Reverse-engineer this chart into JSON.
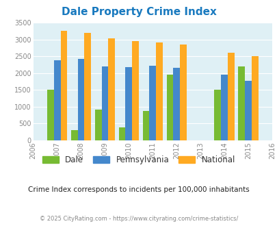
{
  "title": "Dale Property Crime Index",
  "years": [
    2006,
    2007,
    2008,
    2009,
    2010,
    2011,
    2012,
    2013,
    2014,
    2015,
    2016
  ],
  "dale": [
    null,
    1500,
    300,
    900,
    375,
    875,
    1950,
    null,
    1500,
    2200,
    null
  ],
  "pennsylvania": [
    null,
    2375,
    2425,
    2200,
    2175,
    2225,
    2150,
    null,
    1950,
    1775,
    null
  ],
  "national": [
    null,
    3250,
    3200,
    3025,
    2950,
    2900,
    2850,
    null,
    2600,
    2500,
    null
  ],
  "dale_color": "#77bb33",
  "pa_color": "#4488cc",
  "nat_color": "#ffaa22",
  "bg_color": "#dff0f5",
  "ylim": [
    0,
    3500
  ],
  "yticks": [
    0,
    500,
    1000,
    1500,
    2000,
    2500,
    3000,
    3500
  ],
  "subtitle": "Crime Index corresponds to incidents per 100,000 inhabitants",
  "footer": "© 2025 CityRating.com - https://www.cityrating.com/crime-statistics/",
  "legend_labels": [
    "Dale",
    "Pennsylvania",
    "National"
  ],
  "bar_width": 0.28
}
